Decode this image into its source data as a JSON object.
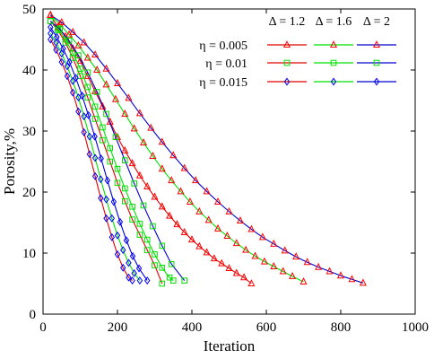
{
  "chart_data": {
    "type": "line",
    "xlabel": "Iteration",
    "ylabel": "Porosity,%",
    "xlim": [
      0,
      1000
    ],
    "ylim": [
      0,
      50
    ],
    "xticks": [
      0,
      200,
      400,
      600,
      800,
      1000
    ],
    "yticks": [
      0,
      10,
      20,
      30,
      40,
      50
    ],
    "grid": false,
    "legend": {
      "placement": "top-right",
      "column_headers": [
        "Δ = 1.2",
        "Δ = 1.6",
        "Δ = 2"
      ],
      "row_labels": [
        "η = 0.005",
        "η = 0.01",
        "η = 0.015"
      ]
    },
    "series": [
      {
        "eta": "η = 0.005",
        "delta": "Δ = 1.2",
        "color": "#ff0000",
        "line": "#e00000",
        "marker": "triangle",
        "x": [
          20,
          40,
          60,
          80,
          100,
          120,
          140,
          160,
          180,
          200,
          220,
          240,
          260,
          280,
          300,
          320,
          340,
          360,
          380,
          400,
          420,
          440,
          460,
          480,
          500,
          520,
          540,
          560
        ],
        "y": [
          49,
          47,
          45.5,
          43.5,
          41.5,
          39,
          36.5,
          34,
          31.5,
          29,
          26.8,
          24.7,
          22.7,
          20.9,
          19.2,
          17.6,
          16.1,
          14.7,
          13.4,
          12.2,
          11.1,
          10.1,
          9.1,
          8.3,
          7.5,
          6.7,
          6,
          5
        ]
      },
      {
        "eta": "η = 0.005",
        "delta": "Δ = 1.6",
        "color": "#ff0000",
        "line": "#00e000",
        "marker": "triangle",
        "x": [
          20,
          45,
          70,
          95,
          120,
          145,
          170,
          195,
          220,
          245,
          270,
          295,
          320,
          345,
          370,
          395,
          420,
          445,
          470,
          495,
          520,
          545,
          570,
          595,
          620,
          645,
          670,
          700
        ],
        "y": [
          49,
          47.5,
          45.8,
          44,
          42,
          40,
          37.6,
          35.2,
          32.8,
          30.4,
          28.1,
          25.9,
          23.8,
          21.9,
          20.1,
          18.4,
          16.8,
          15.4,
          14,
          12.8,
          11.6,
          10.5,
          9.5,
          8.6,
          7.8,
          7,
          6.2,
          5.3
        ]
      },
      {
        "eta": "η = 0.005",
        "delta": "Δ = 2",
        "color": "#ff0000",
        "line": "#0000d0",
        "marker": "triangle",
        "x": [
          20,
          50,
          80,
          110,
          140,
          170,
          200,
          230,
          260,
          290,
          320,
          350,
          380,
          410,
          440,
          470,
          500,
          530,
          560,
          590,
          620,
          650,
          680,
          710,
          740,
          770,
          800,
          830,
          860
        ],
        "y": [
          49,
          47.8,
          46.2,
          44.5,
          42.5,
          40.2,
          37.8,
          35.4,
          32.9,
          30.5,
          28.2,
          26,
          23.9,
          21.9,
          20.1,
          18.4,
          16.8,
          15.3,
          13.9,
          12.6,
          11.5,
          10.4,
          9.4,
          8.5,
          7.7,
          7,
          6.3,
          5.7,
          5.1
        ]
      },
      {
        "eta": "η = 0.01",
        "delta": "Δ = 1.2",
        "color": "#00e000",
        "line": "#e00000",
        "marker": "square",
        "x": [
          20,
          40,
          60,
          80,
          100,
          120,
          140,
          160,
          180,
          200,
          220,
          240,
          260,
          280,
          300,
          320
        ],
        "y": [
          48,
          46.5,
          44.5,
          42,
          39,
          35.5,
          32,
          28.5,
          25,
          21.5,
          18.5,
          15.5,
          13,
          10.5,
          8,
          5
        ]
      },
      {
        "eta": "η = 0.01",
        "delta": "Δ = 1.6",
        "color": "#00e000",
        "line": "#00e000",
        "marker": "square",
        "x": [
          20,
          40,
          60,
          80,
          100,
          120,
          140,
          160,
          180,
          200,
          220,
          240,
          260,
          280,
          300,
          320,
          340,
          350
        ],
        "y": [
          48,
          46.8,
          45,
          42.8,
          40.2,
          37.2,
          34,
          30.6,
          27.2,
          23.8,
          20.6,
          17.6,
          14.8,
          12.2,
          9.8,
          7.6,
          6,
          5.5
        ]
      },
      {
        "eta": "η = 0.01",
        "delta": "Δ = 2",
        "color": "#00e000",
        "line": "#0000d0",
        "marker": "square",
        "x": [
          20,
          45,
          70,
          95,
          120,
          145,
          170,
          195,
          220,
          245,
          270,
          295,
          320,
          345,
          380
        ],
        "y": [
          48,
          46.7,
          44.8,
          42.4,
          39.6,
          36.4,
          32.8,
          29,
          25.2,
          21.4,
          17.8,
          14.4,
          11.2,
          8.2,
          5.5
        ]
      },
      {
        "eta": "η = 0.015",
        "delta": "Δ = 1.2",
        "color": "#0000ff",
        "line": "#e00000",
        "marker": "diamond",
        "x": [
          20,
          35,
          50,
          65,
          80,
          95,
          110,
          125,
          140,
          155,
          170,
          185,
          200,
          215,
          230,
          240
        ],
        "y": [
          45,
          43.3,
          41.3,
          39,
          36.3,
          33.2,
          29.8,
          26.2,
          22.6,
          19,
          15.7,
          12.6,
          9.8,
          7.6,
          6,
          5.5
        ]
      },
      {
        "eta": "η = 0.015",
        "delta": "Δ = 1.6",
        "color": "#0000ff",
        "line": "#00e000",
        "marker": "diamond",
        "x": [
          20,
          35,
          50,
          65,
          80,
          95,
          110,
          125,
          140,
          155,
          170,
          185,
          200,
          215,
          230,
          245,
          260
        ],
        "y": [
          46,
          44.5,
          42.7,
          40.6,
          38.2,
          35.5,
          32.4,
          29.1,
          25.6,
          22.1,
          18.8,
          15.7,
          12.9,
          10.5,
          8.4,
          6.7,
          5.5
        ]
      },
      {
        "eta": "η = 0.015",
        "delta": "Δ = 2",
        "color": "#0000ff",
        "line": "#0000d0",
        "marker": "diamond",
        "x": [
          20,
          37,
          54,
          71,
          88,
          105,
          122,
          139,
          156,
          173,
          190,
          207,
          224,
          241,
          258,
          280
        ],
        "y": [
          47,
          45.4,
          43.5,
          41.3,
          38.7,
          35.8,
          32.6,
          29.1,
          25.5,
          21.9,
          18.4,
          15.1,
          12.1,
          9.5,
          7.5,
          5.5
        ]
      }
    ]
  }
}
